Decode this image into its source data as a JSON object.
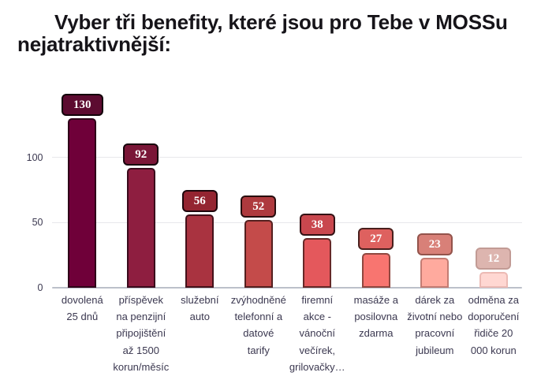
{
  "title": "Vyber tři benefity, které jsou pro Tebe v MOSSu nejatraktivnější:",
  "chart_data": {
    "type": "bar",
    "title": "Vyber tři benefity, které jsou pro Tebe v MOSSu nejatraktivnější:",
    "xlabel": "",
    "ylabel": "",
    "ylim": [
      0,
      140
    ],
    "yticks": [
      0,
      50,
      100
    ],
    "grid": true,
    "legend": false,
    "categories": [
      "dovolená 25 dnů",
      "příspěvek na penzijní připojištění až 1500 korun/měsíc",
      "služební auto",
      "zvýhodněné telefonní a datové tarify",
      "firemní akce - vánoční večírek, grilovačky…",
      "masáže a posilovna zdarma",
      "dárek za životní nebo pracovní jubileum",
      "odměna za doporučení řidiče 20 000 korun"
    ],
    "category_lines": [
      [
        "dovolená",
        "25 dnů"
      ],
      [
        "příspěvek",
        "na penzijní",
        "připojištění",
        "až 1500",
        "korun/měsíc"
      ],
      [
        "služební",
        "auto"
      ],
      [
        "zvýhodněné",
        "telefonní a",
        "datové",
        "tarify"
      ],
      [
        "firemní",
        "akce -",
        "vánoční",
        "večírek,",
        "grilovačky…"
      ],
      [
        "masáže a",
        "posilovna",
        "zdarma"
      ],
      [
        "dárek za",
        "životní nebo",
        "pracovní",
        "jubileum"
      ],
      [
        "odměna za",
        "doporučení",
        "řidiče 20",
        "000 korun"
      ]
    ],
    "values": [
      130,
      92,
      56,
      52,
      38,
      27,
      23,
      12
    ],
    "bar_fill_colors": [
      "#6F0039",
      "#8E1E40",
      "#A93340",
      "#C44B4A",
      "#E4585C",
      "#F87570",
      "#FFAA9E",
      "#FFD7D2"
    ],
    "bar_border_colors": [
      "#2E0018",
      "#3A0A1C",
      "#44111A",
      "#54201F",
      "#662827",
      "#8F4840",
      "#C37C73",
      "#ECBAB4"
    ],
    "value_box_fill_colors": [
      "#5C0B30",
      "#7A1637",
      "#942531",
      "#AE3A3E",
      "#C9474E",
      "#DE615F",
      "#D88078",
      "#DDB5AF"
    ],
    "value_box_border_colors": [
      "#120309",
      "#17040C",
      "#1E070C",
      "#280D0E",
      "#331114",
      "#49201D",
      "#93534B",
      "#C29B95"
    ],
    "value_label_color": "#ffffff",
    "axis_text_color": "#3B3850",
    "gridline_color": "#E8E8EB",
    "baseline_color": "#BCC0CA",
    "background_color": "#ffffff",
    "title_color": "#161419"
  }
}
